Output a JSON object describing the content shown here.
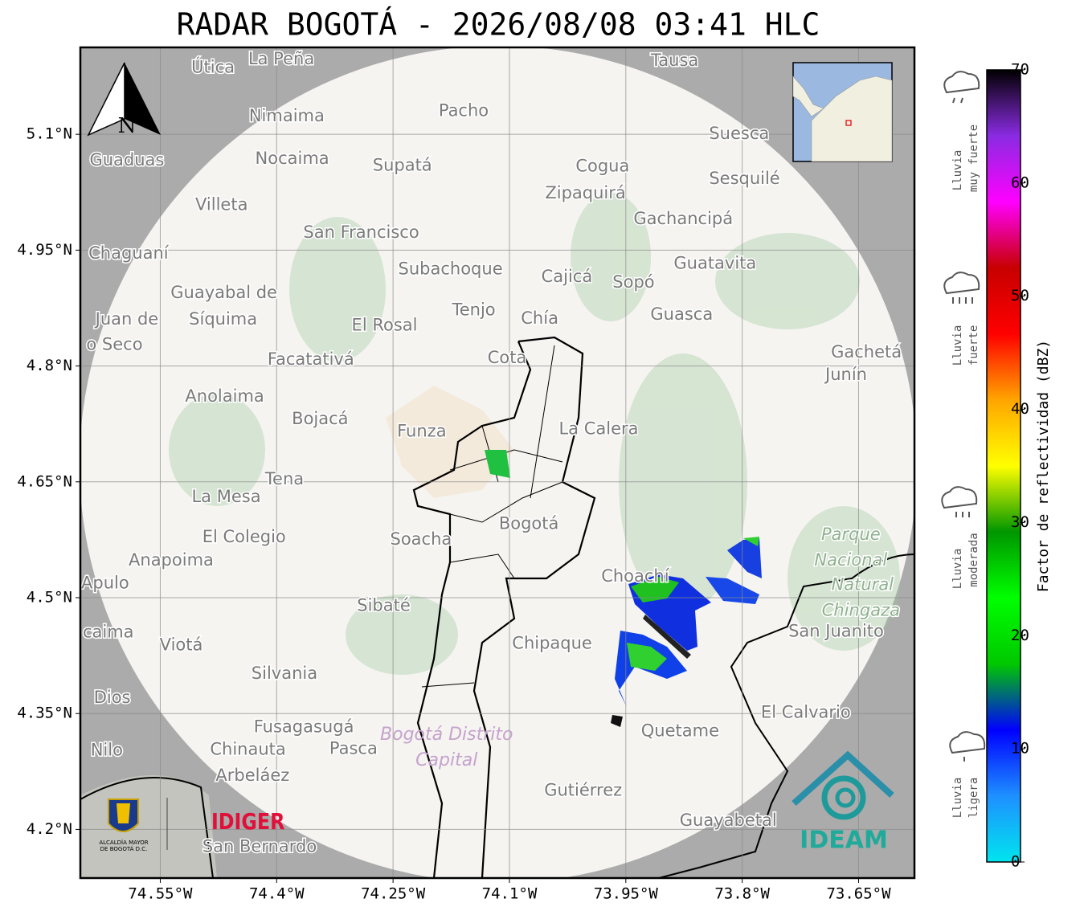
{
  "title": "RADAR BOGOTÁ - 2026/08/08 03:41 HLC",
  "map": {
    "xlim": [
      -74.653,
      -73.578
    ],
    "ylim": [
      4.137,
      5.2125
    ],
    "xticks": [
      {
        "value": -74.55,
        "label": "74.55°W"
      },
      {
        "value": -74.4,
        "label": "74.4°W"
      },
      {
        "value": -74.25,
        "label": "74.25°W"
      },
      {
        "value": -74.1,
        "label": "74.1°W"
      },
      {
        "value": -73.95,
        "label": "73.95°W"
      },
      {
        "value": -73.8,
        "label": "73.8°W"
      },
      {
        "value": -73.65,
        "label": "73.65°W"
      }
    ],
    "yticks": [
      {
        "value": 5.1,
        "label": "5.1°N"
      },
      {
        "value": 4.95,
        "label": "4.95°N"
      },
      {
        "value": 4.8,
        "label": "4.8°N"
      },
      {
        "value": 4.65,
        "label": "4.65°N"
      },
      {
        "value": 4.5,
        "label": "4.5°N"
      },
      {
        "value": 4.35,
        "label": "4.35°N"
      },
      {
        "value": 4.2,
        "label": "4.2°N"
      }
    ],
    "grid": true,
    "places": [
      {
        "label": "Útica",
        "lon": -74.482,
        "lat": 5.186
      },
      {
        "label": "La Peña",
        "lon": -74.394,
        "lat": 5.197
      },
      {
        "label": "Tausa",
        "lon": -73.887,
        "lat": 5.195
      },
      {
        "label": "Pacho",
        "lon": -74.159,
        "lat": 5.13
      },
      {
        "label": "Nimaima",
        "lon": -74.387,
        "lat": 5.123
      },
      {
        "label": "Guaduas",
        "lon": -74.593,
        "lat": 5.066
      },
      {
        "label": "Nocaima",
        "lon": -74.38,
        "lat": 5.068
      },
      {
        "label": "Supatá",
        "lon": -74.238,
        "lat": 5.059
      },
      {
        "label": "Cogua",
        "lon": -73.98,
        "lat": 5.058
      },
      {
        "label": "Suesca",
        "lon": -73.804,
        "lat": 5.1
      },
      {
        "label": "Sesquilé",
        "lon": -73.797,
        "lat": 5.042
      },
      {
        "label": "Zipaquirá",
        "lon": -74.002,
        "lat": 5.023
      },
      {
        "label": "Villeta",
        "lon": -74.471,
        "lat": 5.008
      },
      {
        "label": "Gachancipá",
        "lon": -73.876,
        "lat": 4.99
      },
      {
        "label": "San Francisco",
        "lon": -74.291,
        "lat": 4.972
      },
      {
        "label": "Chaguaní",
        "lon": -74.591,
        "lat": 4.945
      },
      {
        "label": "Guatavita",
        "lon": -73.835,
        "lat": 4.932
      },
      {
        "label": "Subachoque",
        "lon": -74.176,
        "lat": 4.925
      },
      {
        "label": "Cajicá",
        "lon": -74.026,
        "lat": 4.915
      },
      {
        "label": "Sopó",
        "lon": -73.94,
        "lat": 4.908
      },
      {
        "label": "Guayabal de",
        "lon": -74.468,
        "lat": 4.894
      },
      {
        "label": "Síquima",
        "lon": -74.469,
        "lat": 4.86
      },
      {
        "label": "Juan de",
        "lon": -74.593,
        "lat": 4.86
      },
      {
        "label": "o Seco",
        "lon": -74.609,
        "lat": 4.827
      },
      {
        "label": "Tenjo",
        "lon": -74.146,
        "lat": 4.872
      },
      {
        "label": "Chía",
        "lon": -74.061,
        "lat": 4.861
      },
      {
        "label": "Guasca",
        "lon": -73.878,
        "lat": 4.866
      },
      {
        "label": "El Rosal",
        "lon": -74.261,
        "lat": 4.852
      },
      {
        "label": "Facatativá",
        "lon": -74.356,
        "lat": 4.808
      },
      {
        "label": "Cota",
        "lon": -74.103,
        "lat": 4.81
      },
      {
        "label": "Gachetá",
        "lon": -73.64,
        "lat": 4.817
      },
      {
        "label": "Junín",
        "lon": -73.666,
        "lat": 4.788
      },
      {
        "label": "Anolaima",
        "lon": -74.467,
        "lat": 4.76
      },
      {
        "label": "Bojacá",
        "lon": -74.344,
        "lat": 4.731
      },
      {
        "label": "Funza",
        "lon": -74.213,
        "lat": 4.715
      },
      {
        "label": "La Calera",
        "lon": -73.985,
        "lat": 4.718
      },
      {
        "label": "Tena",
        "lon": -74.39,
        "lat": 4.653
      },
      {
        "label": "La Mesa",
        "lon": -74.465,
        "lat": 4.63
      },
      {
        "label": "Bogotá",
        "lon": -74.075,
        "lat": 4.595
      },
      {
        "label": "El Colegio",
        "lon": -74.442,
        "lat": 4.578
      },
      {
        "label": "Soacha",
        "lon": -74.214,
        "lat": 4.575
      },
      {
        "label": "Anapoima",
        "lon": -74.536,
        "lat": 4.548
      },
      {
        "label": "Apulo",
        "lon": -74.621,
        "lat": 4.518
      },
      {
        "label": "Choachí",
        "lon": -73.938,
        "lat": 4.527
      },
      {
        "label": "Sibaté",
        "lon": -74.262,
        "lat": 4.489
      },
      {
        "label": "San Juanito",
        "lon": -73.679,
        "lat": 4.456
      },
      {
        "label": "caima",
        "lon": -74.617,
        "lat": 4.455
      },
      {
        "label": "Viotá",
        "lon": -74.523,
        "lat": 4.438
      },
      {
        "label": "Chipaque",
        "lon": -74.045,
        "lat": 4.44
      },
      {
        "label": "Silvania",
        "lon": -74.39,
        "lat": 4.401
      },
      {
        "label": "Dios",
        "lon": -74.612,
        "lat": 4.37
      },
      {
        "label": "El Calvario",
        "lon": -73.718,
        "lat": 4.351
      },
      {
        "label": "Fusagasugá",
        "lon": -74.365,
        "lat": 4.332
      },
      {
        "label": "Quetame",
        "lon": -73.88,
        "lat": 4.327
      },
      {
        "label": "Nilo",
        "lon": -74.619,
        "lat": 4.302
      },
      {
        "label": "Chinauta",
        "lon": -74.437,
        "lat": 4.303
      },
      {
        "label": "Pasca",
        "lon": -74.301,
        "lat": 4.304
      },
      {
        "label": "Arbeláez",
        "lon": -74.431,
        "lat": 4.269
      },
      {
        "label": "Gutiérrez",
        "lon": -74.005,
        "lat": 4.25
      },
      {
        "label": "Guayabetal",
        "lon": -73.818,
        "lat": 4.211
      },
      {
        "label": "San Bernardo",
        "lon": -74.422,
        "lat": 4.177
      }
    ],
    "park_labels": [
      {
        "label": "Parque",
        "lon": -73.66,
        "lat": 4.581
      },
      {
        "label": "Nacional",
        "lon": -73.66,
        "lat": 4.548
      },
      {
        "label": "Natural",
        "lon": -73.645,
        "lat": 4.516
      },
      {
        "label": "Chingaza",
        "lon": -73.647,
        "lat": 4.483
      }
    ],
    "district_labels": [
      {
        "label": "Bogotá Distrito",
        "lon": -74.181,
        "lat": 4.322
      },
      {
        "label": "Capital",
        "lon": -74.181,
        "lat": 4.289
      }
    ]
  },
  "north_arrow": "N",
  "logos": {
    "alcaldia": [
      "ALCALDÍA MAYOR",
      "DE BOGOTÁ D.C."
    ],
    "idiger": "IDIGER",
    "ideam": "IDEAM"
  },
  "colorbar": {
    "label": "Factor de reflectividad (dBZ)",
    "lim": [
      0,
      70
    ],
    "ticks": [
      0,
      10,
      20,
      30,
      40,
      50,
      60,
      70
    ],
    "colors": [
      "#00e5ee",
      "#1e90ff",
      "#0000ff",
      "#00c800",
      "#00ff00",
      "#009600",
      "#ffff00",
      "#ffa500",
      "#ff0000",
      "#c80000",
      "#ff00ff",
      "#8a2be2",
      "#000000"
    ]
  },
  "rain_categories": [
    {
      "lines": [
        "Lluvia",
        "muy fuerte"
      ]
    },
    {
      "lines": [
        "Lluvia",
        "fuerte"
      ]
    },
    {
      "lines": [
        "Lluvia",
        "moderada"
      ]
    },
    {
      "lines": [
        "Lluvia",
        "ligera"
      ]
    }
  ]
}
